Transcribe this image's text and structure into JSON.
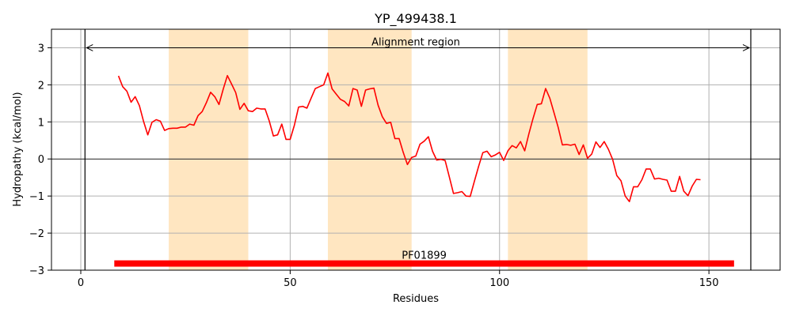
{
  "chart_data": {
    "type": "line",
    "title": "YP_499438.1",
    "xlabel": "Residues",
    "ylabel": "Hydropathy (kcal/mol)",
    "xlim": [
      -7,
      167
    ],
    "ylim": [
      -3,
      3.5
    ],
    "xticks": [
      0,
      50,
      100,
      150
    ],
    "yticks": [
      -3,
      -2,
      -1,
      0,
      1,
      2,
      3
    ],
    "grid": true,
    "zero_line": true,
    "highlight_regions": [
      [
        21,
        40
      ],
      [
        59,
        79
      ],
      [
        102,
        121
      ]
    ],
    "alignment_region": {
      "label": "Alignment region",
      "start": 1,
      "end": 160,
      "y": 3.0
    },
    "domain_bar": {
      "label": "PF01899",
      "start": 8,
      "end": 156,
      "y": -2.82
    },
    "series": [
      {
        "color": "#ff0000",
        "x": [
          9,
          10,
          11,
          12,
          13,
          14,
          15,
          16,
          17,
          18,
          19,
          20,
          21,
          22,
          23,
          24,
          25,
          26,
          27,
          28,
          29,
          30,
          31,
          32,
          33,
          34,
          35,
          36,
          37,
          38,
          39,
          40,
          41,
          42,
          43,
          44,
          45,
          46,
          47,
          48,
          49,
          50,
          51,
          52,
          53,
          54,
          55,
          56,
          57,
          58,
          59,
          60,
          61,
          62,
          63,
          64,
          65,
          66,
          67,
          68,
          69,
          70,
          71,
          72,
          73,
          74,
          75,
          76,
          77,
          78,
          79,
          80,
          81,
          82,
          83,
          84,
          85,
          86,
          87,
          88,
          89,
          90,
          91,
          92,
          93,
          94,
          95,
          96,
          97,
          98,
          99,
          100,
          101,
          102,
          103,
          104,
          105,
          106,
          107,
          108,
          109,
          110,
          111,
          112,
          113,
          114,
          115,
          116,
          117,
          118,
          119,
          120,
          121,
          122,
          123,
          124,
          125,
          126,
          127,
          128,
          129,
          130,
          131,
          132,
          133,
          134,
          135,
          136,
          137,
          138,
          139,
          140,
          141,
          142,
          143,
          144,
          145,
          146,
          147,
          148
        ],
        "y": [
          2.24,
          1.95,
          1.83,
          1.53,
          1.68,
          1.44,
          1.01,
          0.65,
          0.99,
          1.06,
          1.02,
          0.77,
          0.82,
          0.83,
          0.83,
          0.86,
          0.86,
          0.94,
          0.91,
          1.17,
          1.28,
          1.52,
          1.8,
          1.68,
          1.47,
          1.88,
          2.25,
          2.02,
          1.79,
          1.34,
          1.5,
          1.3,
          1.28,
          1.37,
          1.35,
          1.35,
          1.03,
          0.62,
          0.65,
          0.94,
          0.53,
          0.53,
          0.91,
          1.4,
          1.42,
          1.37,
          1.64,
          1.9,
          1.95,
          2.0,
          2.32,
          1.89,
          1.75,
          1.61,
          1.55,
          1.43,
          1.9,
          1.86,
          1.42,
          1.86,
          1.89,
          1.91,
          1.45,
          1.14,
          0.96,
          0.99,
          0.55,
          0.55,
          0.18,
          -0.15,
          0.04,
          0.08,
          0.4,
          0.48,
          0.6,
          0.21,
          -0.03,
          -0.01,
          -0.04,
          -0.48,
          -0.93,
          -0.91,
          -0.88,
          -1.0,
          -1.01,
          -0.6,
          -0.2,
          0.17,
          0.21,
          0.06,
          0.11,
          0.18,
          -0.04,
          0.22,
          0.36,
          0.3,
          0.47,
          0.22,
          0.68,
          1.09,
          1.47,
          1.49,
          1.9,
          1.64,
          1.25,
          0.85,
          0.38,
          0.39,
          0.37,
          0.4,
          0.12,
          0.38,
          0.02,
          0.13,
          0.46,
          0.31,
          0.47,
          0.26,
          -0.01,
          -0.45,
          -0.59,
          -1.0,
          -1.15,
          -0.75,
          -0.75,
          -0.56,
          -0.27,
          -0.27,
          -0.54,
          -0.52,
          -0.55,
          -0.57,
          -0.87,
          -0.87,
          -0.47,
          -0.87,
          -0.99,
          -0.73,
          -0.55,
          -0.56
        ]
      }
    ]
  },
  "colors": {
    "line": "#ff0000",
    "highlight": "#ffe6c1",
    "domain_bar": "#ff0000",
    "grid": "#b0b0b0",
    "axis": "#000000"
  }
}
